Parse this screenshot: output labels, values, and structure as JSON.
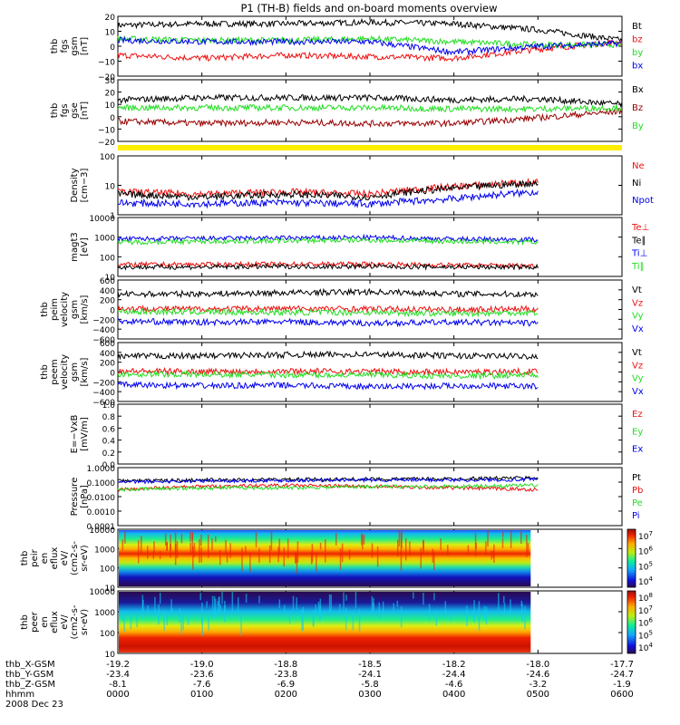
{
  "title": "P1 (TH-B) fields and on-board moments overview",
  "colors": {
    "black": "#000000",
    "red": "#ee1111",
    "darkred": "#990000",
    "green": "#22dd22",
    "blue": "#0000ee",
    "yellow": "#ffee00"
  },
  "footer": {
    "rows": [
      {
        "label": "thb_X-GSM",
        "values": [
          "-19.2",
          "-19.0",
          "-18.8",
          "-18.5",
          "-18.2",
          "-18.0",
          "-17.7"
        ]
      },
      {
        "label": "thb_Y-GSM",
        "values": [
          "-23.4",
          "-23.6",
          "-23.8",
          "-24.1",
          "-24.4",
          "-24.6",
          "-24.7"
        ]
      },
      {
        "label": "thb_Z-GSM",
        "values": [
          "-8.1",
          "-7.6",
          "-6.9",
          "-5.8",
          "-4.6",
          "-3.2",
          "-1.9"
        ]
      },
      {
        "label": "hhmm",
        "values": [
          "0000",
          "0100",
          "0200",
          "0300",
          "0400",
          "0500",
          "0600"
        ]
      }
    ],
    "date": "2008 Dec 23"
  },
  "chart_data": [
    {
      "type": "line",
      "ylabel": [
        "thb",
        "fgs",
        "gsm",
        "[nT]"
      ],
      "ylim": [
        -20,
        20
      ],
      "ticks": [
        "20",
        "10",
        "0",
        "−10",
        "−20"
      ],
      "x": [
        "0000",
        "0100",
        "0200",
        "0300",
        "0400",
        "0500",
        "0600"
      ],
      "series": [
        {
          "name": "Bt",
          "color": "#000000",
          "values": [
            14,
            15,
            15,
            16,
            15,
            11,
            4
          ]
        },
        {
          "name": "bz",
          "color": "#ee1111",
          "values": [
            -6,
            -8,
            -6,
            -7,
            -8,
            -2,
            3
          ]
        },
        {
          "name": "by",
          "color": "#22dd22",
          "values": [
            5,
            4,
            4,
            5,
            3,
            1,
            1
          ]
        },
        {
          "name": "bx",
          "color": "#0000ee",
          "values": [
            4,
            3,
            3,
            3,
            -4,
            0,
            2
          ]
        }
      ]
    },
    {
      "type": "line",
      "ylabel": [
        "thb",
        "fgs",
        "gse",
        "[nT]"
      ],
      "ylim": [
        -25,
        30
      ],
      "ticks": [
        "30",
        "20",
        "10",
        "0",
        "−10",
        "−20"
      ],
      "x": [
        "0000",
        "0100",
        "0200",
        "0300",
        "0400",
        "0500",
        "0600"
      ],
      "series": [
        {
          "name": "Bx",
          "color": "#000000",
          "values": [
            12,
            14,
            14,
            14,
            12,
            13,
            8
          ]
        },
        {
          "name": "Bz",
          "color": "#990000",
          "values": [
            -7,
            -9,
            -8,
            -9,
            -9,
            -4,
            2
          ]
        },
        {
          "name": "By",
          "color": "#22dd22",
          "values": [
            5,
            5,
            5,
            5,
            4,
            4,
            5
          ]
        }
      ]
    },
    {
      "type": "line",
      "ylabel": [
        "Density",
        "[cm−3]"
      ],
      "log": true,
      "ylim": [
        1,
        100
      ],
      "ticks": [
        "100",
        "10",
        "1"
      ],
      "x": [
        "0000",
        "0100",
        "0200",
        "0300",
        "0400",
        "0500"
      ],
      "series": [
        {
          "name": "Ne",
          "color": "#ee1111",
          "values": [
            6,
            5,
            6,
            5,
            9,
            13
          ]
        },
        {
          "name": "Ni",
          "color": "#000000",
          "values": [
            5,
            4,
            5,
            4,
            8,
            12
          ]
        },
        {
          "name": "Npot",
          "color": "#0000ee",
          "values": [
            2.5,
            2.4,
            2.6,
            2.3,
            3.5,
            6
          ]
        }
      ]
    },
    {
      "type": "line",
      "ylabel": [
        "magt3",
        "[eV]"
      ],
      "log": true,
      "ylim": [
        10,
        10000
      ],
      "ticks": [
        "10000",
        "1000",
        "100",
        "10"
      ],
      "x": [
        "0000",
        "0100",
        "0200",
        "0300",
        "0400",
        "0500"
      ],
      "series": [
        {
          "name": "Te⊥",
          "color": "#ee1111",
          "values": [
            40,
            40,
            42,
            42,
            38,
            35
          ]
        },
        {
          "name": "Te∥",
          "color": "#000000",
          "values": [
            30,
            30,
            32,
            32,
            30,
            30
          ]
        },
        {
          "name": "Ti⊥",
          "color": "#0000ee",
          "values": [
            800,
            850,
            900,
            950,
            800,
            750
          ]
        },
        {
          "name": "Ti∥",
          "color": "#22dd22",
          "values": [
            550,
            600,
            650,
            700,
            600,
            550
          ]
        }
      ]
    },
    {
      "type": "line",
      "ylabel": [
        "thb",
        "peim",
        "velocity",
        "gsm",
        "[km/s]"
      ],
      "ylim": [
        -600,
        600
      ],
      "ticks": [
        "600",
        "400",
        "200",
        "0",
        "−200",
        "−400",
        "−600"
      ],
      "x": [
        "0000",
        "0100",
        "0200",
        "0300",
        "0400",
        "0500"
      ],
      "series": [
        {
          "name": "Vt",
          "color": "#000000",
          "values": [
            310,
            320,
            340,
            360,
            320,
            310
          ]
        },
        {
          "name": "Vz",
          "color": "#ee1111",
          "values": [
            20,
            10,
            20,
            10,
            0,
            10
          ]
        },
        {
          "name": "Vy",
          "color": "#22dd22",
          "values": [
            -40,
            -50,
            -60,
            -60,
            -80,
            -60
          ]
        },
        {
          "name": "Vx",
          "color": "#0000ee",
          "values": [
            -240,
            -260,
            -250,
            -280,
            -260,
            -280
          ]
        }
      ]
    },
    {
      "type": "line",
      "ylabel": [
        "thb",
        "peem",
        "velocity",
        "gsm",
        "[km/s]"
      ],
      "ylim": [
        -600,
        600
      ],
      "ticks": [
        "600",
        "400",
        "200",
        "0",
        "−200",
        "−400",
        "−600"
      ],
      "x": [
        "0000",
        "0100",
        "0200",
        "0300",
        "0400",
        "0500"
      ],
      "series": [
        {
          "name": "Vt",
          "color": "#000000",
          "values": [
            320,
            330,
            350,
            360,
            330,
            320
          ]
        },
        {
          "name": "Vz",
          "color": "#ee1111",
          "values": [
            20,
            10,
            20,
            10,
            0,
            10
          ]
        },
        {
          "name": "Vy",
          "color": "#22dd22",
          "values": [
            -40,
            -50,
            -60,
            -60,
            -80,
            -60
          ]
        },
        {
          "name": "Vx",
          "color": "#0000ee",
          "values": [
            -260,
            -280,
            -270,
            -300,
            -280,
            -290
          ]
        }
      ]
    },
    {
      "type": "line",
      "ylabel": [
        "E=−VxB",
        "[mV/m]"
      ],
      "ylim": [
        0,
        1
      ],
      "ticks": [
        "1.0",
        "0.8",
        "0.6",
        "0.4",
        "0.2",
        "0.0"
      ],
      "x": [],
      "series": [
        {
          "name": "Ez",
          "color": "#ee1111",
          "values": []
        },
        {
          "name": "Ey",
          "color": "#22dd22",
          "values": []
        },
        {
          "name": "Ex",
          "color": "#0000ee",
          "values": []
        }
      ]
    },
    {
      "type": "line",
      "ylabel": [
        "Pressure",
        "[nPa]"
      ],
      "log": true,
      "ylim": [
        0.0001,
        1
      ],
      "ticks": [
        "1.0000",
        "0.1000",
        "0.0100",
        "0.0010",
        "0.0001"
      ],
      "x": [
        "0000",
        "0100",
        "0200",
        "0300",
        "0400",
        "0500"
      ],
      "series": [
        {
          "name": "Pt",
          "color": "#000000",
          "values": [
            0.12,
            0.14,
            0.15,
            0.16,
            0.17,
            0.2
          ]
        },
        {
          "name": "Pb",
          "color": "#ee1111",
          "values": [
            0.03,
            0.05,
            0.06,
            0.05,
            0.04,
            0.03
          ]
        },
        {
          "name": "Pe",
          "color": "#22dd22",
          "values": [
            0.03,
            0.04,
            0.04,
            0.05,
            0.05,
            0.06
          ]
        },
        {
          "name": "Pi",
          "color": "#0000ee",
          "values": [
            0.1,
            0.12,
            0.13,
            0.14,
            0.14,
            0.15
          ]
        }
      ]
    },
    {
      "type": "heatmap",
      "ylabel": [
        "thb",
        "peir",
        "en",
        "eflux",
        "eV/",
        "(cm2-s-",
        "sr-eV)"
      ],
      "log": true,
      "ylim": [
        10,
        10000
      ],
      "ticks": [
        "10000",
        "1000",
        "100",
        "10"
      ],
      "colorbar": [
        "10^7",
        "10^6",
        "10^5",
        "10^4"
      ]
    },
    {
      "type": "heatmap",
      "ylabel": [
        "thb",
        "peer",
        "en",
        "eflux",
        "eV/",
        "(cm2-s-",
        "sr-eV)"
      ],
      "log": true,
      "ylim": [
        10,
        10000
      ],
      "ticks": [
        "10000",
        "1000",
        "100",
        "10"
      ],
      "colorbar": [
        "10^8",
        "10^7",
        "10^6",
        "10^5",
        "10^4"
      ]
    }
  ]
}
